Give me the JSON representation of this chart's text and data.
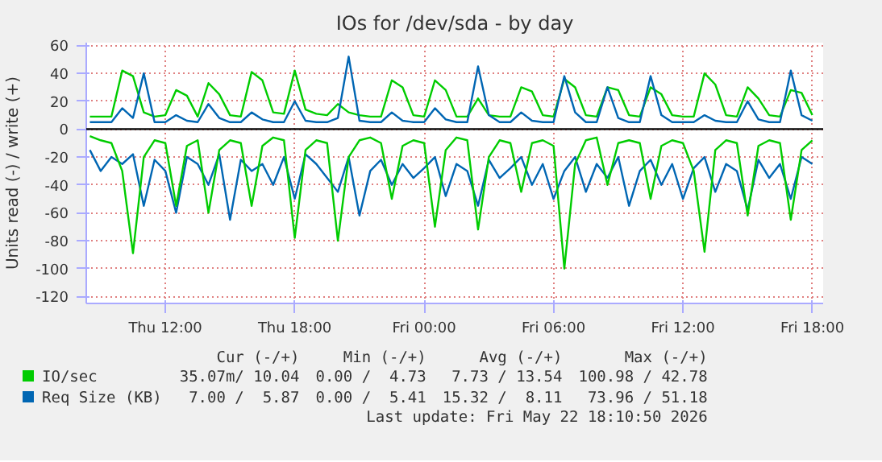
{
  "chart_data": {
    "type": "line",
    "title": "IOs for /dev/sda - by day",
    "ylabel": "Units read (-) / write (+)",
    "x": [
      "2026-05-21T08:30",
      "2026-05-21T09:00",
      "2026-05-21T09:30",
      "2026-05-21T10:00",
      "2026-05-21T10:30",
      "2026-05-21T11:00",
      "2026-05-21T11:30",
      "2026-05-21T12:00",
      "2026-05-21T12:30",
      "2026-05-21T13:00",
      "2026-05-21T13:30",
      "2026-05-21T14:00",
      "2026-05-21T14:30",
      "2026-05-21T15:00",
      "2026-05-21T15:30",
      "2026-05-21T16:00",
      "2026-05-21T16:30",
      "2026-05-21T17:00",
      "2026-05-21T17:30",
      "2026-05-21T18:00",
      "2026-05-21T18:30",
      "2026-05-21T19:00",
      "2026-05-21T19:30",
      "2026-05-21T20:00",
      "2026-05-21T20:30",
      "2026-05-21T21:00",
      "2026-05-21T21:30",
      "2026-05-21T22:00",
      "2026-05-21T22:30",
      "2026-05-21T23:00",
      "2026-05-21T23:30",
      "2026-05-22T00:00",
      "2026-05-22T00:30",
      "2026-05-22T01:00",
      "2026-05-22T01:30",
      "2026-05-22T02:00",
      "2026-05-22T02:30",
      "2026-05-22T03:00",
      "2026-05-22T03:30",
      "2026-05-22T04:00",
      "2026-05-22T04:30",
      "2026-05-22T05:00",
      "2026-05-22T05:30",
      "2026-05-22T06:00",
      "2026-05-22T06:30",
      "2026-05-22T07:00",
      "2026-05-22T07:30",
      "2026-05-22T08:00",
      "2026-05-22T08:30",
      "2026-05-22T09:00",
      "2026-05-22T09:30",
      "2026-05-22T10:00",
      "2026-05-22T10:30",
      "2026-05-22T11:00",
      "2026-05-22T11:30",
      "2026-05-22T12:00",
      "2026-05-22T12:30",
      "2026-05-22T13:00",
      "2026-05-22T13:30",
      "2026-05-22T14:00",
      "2026-05-22T14:30",
      "2026-05-22T15:00",
      "2026-05-22T15:30",
      "2026-05-22T16:00",
      "2026-05-22T16:30",
      "2026-05-22T17:00",
      "2026-05-22T17:30",
      "2026-05-22T18:00"
    ],
    "series": [
      {
        "color": "#0066b3",
        "values": [
          -15,
          -30,
          -20,
          -25,
          -18,
          -55,
          -22,
          -30,
          -60,
          -20,
          -25,
          -40,
          -18,
          -65,
          -22,
          -30,
          -25,
          -40,
          -20,
          -50,
          -18,
          -25,
          -35,
          -45,
          -20,
          -62,
          -30,
          -22,
          -40,
          -25,
          -35,
          -28,
          -20,
          -48,
          -25,
          -30,
          -55,
          -22,
          -35,
          -28,
          -20,
          -40,
          -25,
          -50,
          -30,
          -20,
          -45,
          -25,
          -35,
          -20,
          -55,
          -30,
          -22,
          -40,
          -25,
          -50,
          -28,
          -20,
          -45,
          -25,
          -30,
          -58,
          -22,
          -35,
          -25,
          -50,
          -20,
          -25
        ]
      },
      {
        "color": "#00cc00",
        "values": [
          -5,
          -8,
          -10,
          -30,
          -89,
          -20,
          -8,
          -10,
          -55,
          -12,
          -8,
          -60,
          -15,
          -8,
          -10,
          -55,
          -12,
          -6,
          -8,
          -78,
          -15,
          -8,
          -10,
          -80,
          -20,
          -8,
          -6,
          -10,
          -50,
          -12,
          -8,
          -10,
          -70,
          -15,
          -6,
          -8,
          -72,
          -20,
          -8,
          -10,
          -45,
          -10,
          -8,
          -12,
          -100,
          -25,
          -8,
          -6,
          -40,
          -10,
          -8,
          -10,
          -50,
          -12,
          -8,
          -10,
          -30,
          -88,
          -15,
          -8,
          -10,
          -62,
          -12,
          -8,
          -10,
          -65,
          -15,
          -8
        ]
      },
      {
        "name": "IO/sec",
        "color": "#00cc00",
        "values": [
          9,
          9,
          9,
          42,
          38,
          12,
          9,
          10,
          28,
          24,
          9,
          33,
          25,
          10,
          9,
          41,
          35,
          12,
          11,
          42,
          14,
          11,
          10,
          18,
          12,
          10,
          9,
          9,
          35,
          30,
          10,
          9,
          35,
          28,
          9,
          9,
          22,
          10,
          9,
          9,
          30,
          27,
          10,
          9,
          36,
          30,
          10,
          9,
          30,
          28,
          10,
          9,
          30,
          25,
          10,
          9,
          9,
          40,
          32,
          10,
          9,
          30,
          22,
          10,
          9,
          28,
          26,
          10
        ]
      },
      {
        "name": "Req Size (KB)",
        "color": "#0066b3",
        "values": [
          5,
          5,
          5,
          15,
          8,
          40,
          5,
          5,
          10,
          6,
          5,
          18,
          8,
          5,
          5,
          12,
          7,
          5,
          5,
          20,
          6,
          5,
          5,
          8,
          52,
          6,
          5,
          5,
          12,
          6,
          5,
          5,
          15,
          7,
          5,
          5,
          45,
          10,
          5,
          5,
          12,
          6,
          5,
          5,
          38,
          12,
          5,
          5,
          30,
          8,
          5,
          5,
          38,
          10,
          5,
          5,
          5,
          10,
          6,
          5,
          5,
          20,
          7,
          5,
          5,
          42,
          10,
          6
        ]
      }
    ],
    "xlim": [
      "2026-05-21T08:20",
      "2026-05-22T18:30"
    ],
    "xticks": [
      {
        "value": "2026-05-21T12:00",
        "label": "Thu 12:00"
      },
      {
        "value": "2026-05-21T18:00",
        "label": "Thu 18:00"
      },
      {
        "value": "2026-05-22T00:00",
        "label": "Fri 00:00"
      },
      {
        "value": "2026-05-22T06:00",
        "label": "Fri 06:00"
      },
      {
        "value": "2026-05-22T12:00",
        "label": "Fri 12:00"
      },
      {
        "value": "2026-05-22T18:00",
        "label": "Fri 18:00"
      }
    ],
    "ylim": [
      -125,
      62
    ],
    "yticks": [
      -120,
      -100,
      -80,
      -60,
      -40,
      -20,
      0,
      20,
      40,
      60
    ],
    "ref_lines": [
      {
        "axis": "y",
        "value": 0,
        "color": "#000000"
      }
    ],
    "grid": true,
    "legend": "bottom",
    "annotations": [
      "Cur (-/+)",
      "Min (-/+)",
      "Avg (-/+)",
      "Max (-/+)",
      "35.07m/ 10.04",
      "0.00 /  4.73",
      "7.73 / 13.54",
      "100.98 / 42.78",
      "7.00 /  5.87",
      "0.00 /  5.41",
      "15.32 /  8.11",
      "73.96 / 51.18",
      "Last update: Fri May 22 18:10:50 2026"
    ]
  }
}
